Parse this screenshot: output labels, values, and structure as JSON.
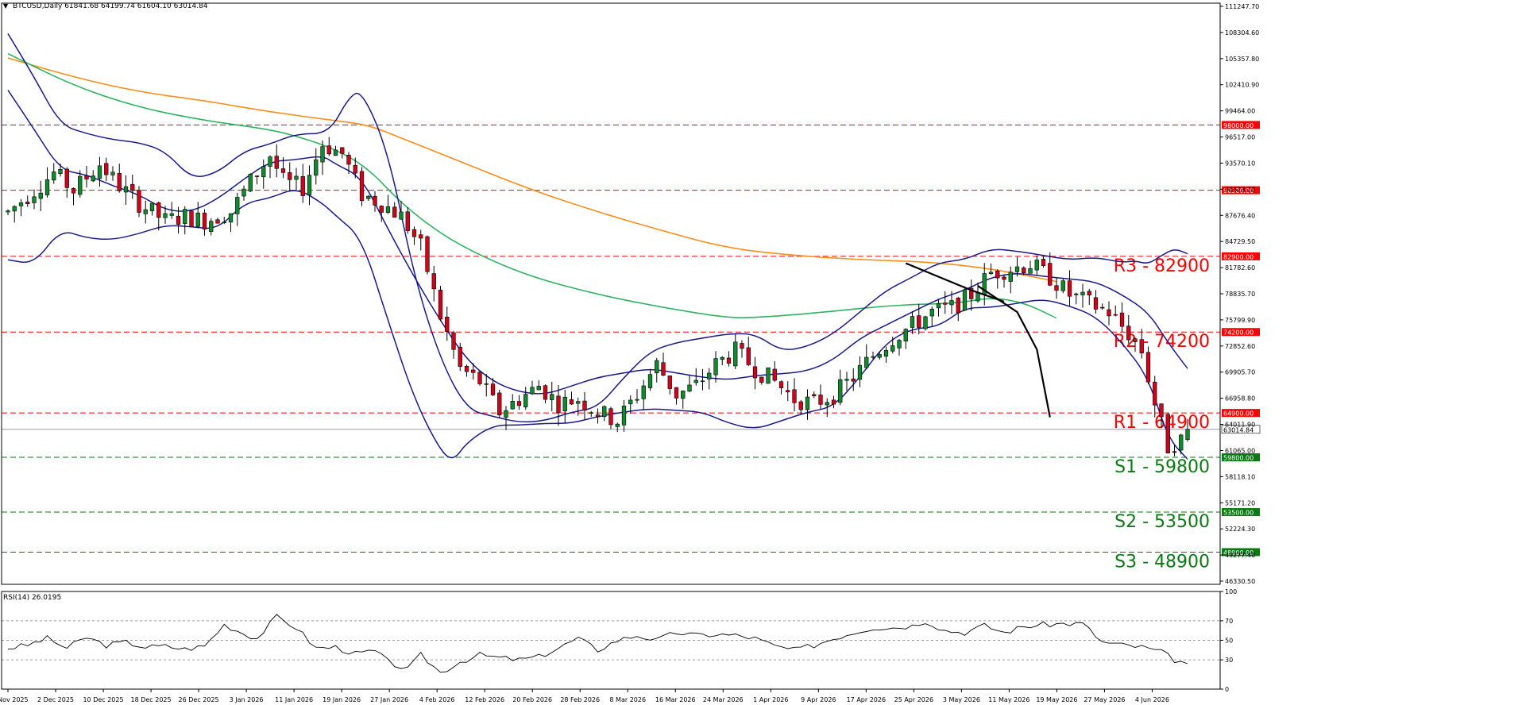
{
  "header": {
    "symbol": "BTCUSD,Daily",
    "ohlc": "61841.68 64199.74 61604.10 63014.84"
  },
  "rsi_header": "RSI(14) 26.0195",
  "colors": {
    "bull": "#0f8a2e",
    "bear": "#d0021b",
    "bb": "#1a1a8c",
    "ma100": "#2db360",
    "ma200": "#ff8c1a",
    "resistance": "#ff0000",
    "support": "#0a7a12",
    "trend": "#000000"
  },
  "chart_data": [
    {
      "type": "candlestick",
      "title": "BTCUSD,Daily",
      "ylim": [
        45200,
        112000
      ],
      "y_ticks": [
        "111247.70",
        "108304.60",
        "105357.80",
        "102410.90",
        "99464.00",
        "96517.00",
        "93570.10",
        "90623.20",
        "87676.40",
        "84729.50",
        "81782.60",
        "78835.70",
        "75799.90",
        "72852.60",
        "69905.70",
        "66958.80",
        "64011.90",
        "61065.00",
        "58118.10",
        "55171.20",
        "52224.30",
        "49277.40",
        "46330.50"
      ],
      "x_ticks": [
        "24 Nov 2025",
        "2 Dec 2025",
        "10 Dec 2025",
        "18 Dec 2025",
        "26 Dec 2025",
        "3 Jan 2026",
        "11 Jan 2026",
        "19 Jan 2026",
        "27 Jan 2026",
        "4 Feb 2026",
        "12 Feb 2026",
        "20 Feb 2026",
        "28 Feb 2026",
        "8 Mar 2026",
        "16 Mar 2026",
        "24 Mar 2026",
        "1 Apr 2026",
        "9 Apr 2026",
        "17 Apr 2026",
        "25 Apr 2026",
        "3 May 2026",
        "11 May 2026",
        "19 May 2026",
        "27 May 2026",
        "4 Jun 2026"
      ],
      "close_path": [
        [
          0,
          88000
        ],
        [
          4,
          90500
        ],
        [
          7,
          92500
        ],
        [
          10,
          90500
        ],
        [
          14,
          93500
        ],
        [
          17,
          91000
        ],
        [
          20,
          89000
        ],
        [
          24,
          87000
        ],
        [
          27,
          87500
        ],
        [
          30,
          87000
        ],
        [
          34,
          88000
        ],
        [
          37,
          91500
        ],
        [
          40,
          94500
        ],
        [
          42,
          91500
        ],
        [
          45,
          90800
        ],
        [
          48,
          95800
        ],
        [
          51,
          94700
        ],
        [
          54,
          90000
        ],
        [
          57,
          89000
        ],
        [
          60,
          87500
        ],
        [
          63,
          84000
        ],
        [
          66,
          76000
        ],
        [
          69,
          70000
        ],
        [
          72,
          68500
        ],
        [
          75,
          65000
        ],
        [
          78,
          66500
        ],
        [
          81,
          68000
        ],
        [
          84,
          66000
        ],
        [
          87,
          66500
        ],
        [
          90,
          65000
        ],
        [
          93,
          64000
        ],
        [
          96,
          67000
        ],
        [
          99,
          70500
        ],
        [
          102,
          67000
        ],
        [
          105,
          68000
        ],
        [
          108,
          70500
        ],
        [
          111,
          72000
        ],
        [
          114,
          70000
        ],
        [
          117,
          68500
        ],
        [
          120,
          66500
        ],
        [
          123,
          66000
        ],
        [
          126,
          67000
        ],
        [
          129,
          69000
        ],
        [
          132,
          71500
        ],
        [
          135,
          73500
        ],
        [
          138,
          75000
        ],
        [
          141,
          76500
        ],
        [
          144,
          77000
        ],
        [
          147,
          78500
        ],
        [
          150,
          81000
        ],
        [
          153,
          81500
        ],
        [
          156,
          82000
        ],
        [
          159,
          80500
        ],
        [
          162,
          78500
        ],
        [
          165,
          77500
        ],
        [
          168,
          76500
        ],
        [
          171,
          74000
        ],
        [
          173,
          72000
        ],
        [
          175,
          66000
        ],
        [
          177,
          61000
        ],
        [
          179,
          61800
        ],
        [
          180,
          63014.84
        ]
      ],
      "last": [
        61841.68,
        64199.74,
        61604.1,
        63014.84
      ],
      "last_price_label": "63014.84",
      "bollinger_upper": [
        [
          0,
          108500
        ],
        [
          4,
          103500
        ],
        [
          8,
          98000
        ],
        [
          12,
          97000
        ],
        [
          16,
          96300
        ],
        [
          20,
          96000
        ],
        [
          24,
          95000
        ],
        [
          28,
          91800
        ],
        [
          32,
          92500
        ],
        [
          36,
          95000
        ],
        [
          40,
          95800
        ],
        [
          44,
          97000
        ],
        [
          49,
          97000
        ],
        [
          52,
          101200
        ],
        [
          54,
          102000
        ],
        [
          58,
          95000
        ],
        [
          62,
          80500
        ],
        [
          66,
          71000
        ],
        [
          70,
          65300
        ],
        [
          74,
          64500
        ],
        [
          78,
          63800
        ],
        [
          82,
          64000
        ],
        [
          86,
          65000
        ],
        [
          90,
          65500
        ],
        [
          94,
          69000
        ],
        [
          98,
          72000
        ],
        [
          102,
          73000
        ],
        [
          106,
          73500
        ],
        [
          110,
          74000
        ],
        [
          114,
          74000
        ],
        [
          118,
          72000
        ],
        [
          122,
          72500
        ],
        [
          126,
          74000
        ],
        [
          130,
          76500
        ],
        [
          134,
          79000
        ],
        [
          138,
          80500
        ],
        [
          142,
          82200
        ],
        [
          146,
          82500
        ],
        [
          150,
          83800
        ],
        [
          154,
          83500
        ],
        [
          158,
          83000
        ],
        [
          162,
          82500
        ],
        [
          166,
          82800
        ],
        [
          170,
          82200
        ],
        [
          172,
          82400
        ],
        [
          174,
          82000
        ],
        [
          176,
          83000
        ],
        [
          178,
          83800
        ],
        [
          180,
          83200
        ]
      ],
      "bollinger_middle": [
        [
          0,
          102000
        ],
        [
          4,
          97500
        ],
        [
          8,
          92800
        ],
        [
          12,
          92300
        ],
        [
          16,
          91000
        ],
        [
          20,
          90000
        ],
        [
          24,
          88200
        ],
        [
          28,
          88000
        ],
        [
          32,
          89500
        ],
        [
          36,
          91800
        ],
        [
          40,
          93800
        ],
        [
          44,
          94000
        ],
        [
          48,
          94500
        ],
        [
          50,
          93500
        ],
        [
          54,
          92000
        ],
        [
          58,
          86000
        ],
        [
          62,
          80500
        ],
        [
          66,
          75500
        ],
        [
          70,
          71000
        ],
        [
          74,
          68500
        ],
        [
          78,
          67300
        ],
        [
          82,
          67000
        ],
        [
          86,
          68000
        ],
        [
          90,
          69000
        ],
        [
          94,
          69500
        ],
        [
          98,
          70000
        ],
        [
          102,
          69500
        ],
        [
          106,
          69000
        ],
        [
          110,
          68700
        ],
        [
          114,
          69200
        ],
        [
          118,
          69400
        ],
        [
          122,
          69700
        ],
        [
          126,
          71000
        ],
        [
          130,
          73500
        ],
        [
          134,
          75000
        ],
        [
          138,
          76500
        ],
        [
          142,
          78000
        ],
        [
          146,
          79000
        ],
        [
          150,
          80500
        ],
        [
          154,
          81000
        ],
        [
          158,
          80600
        ],
        [
          162,
          80300
        ],
        [
          166,
          80000
        ],
        [
          170,
          78500
        ],
        [
          174,
          76500
        ],
        [
          177,
          73000
        ],
        [
          180,
          70000
        ]
      ],
      "bollinger_lower": [
        [
          0,
          82500
        ],
        [
          4,
          82000
        ],
        [
          8,
          86000
        ],
        [
          12,
          85000
        ],
        [
          16,
          84800
        ],
        [
          20,
          85500
        ],
        [
          24,
          86500
        ],
        [
          28,
          86300
        ],
        [
          32,
          86000
        ],
        [
          36,
          89000
        ],
        [
          40,
          89600
        ],
        [
          44,
          90800
        ],
        [
          48,
          89000
        ],
        [
          50,
          87600
        ],
        [
          54,
          85000
        ],
        [
          58,
          75500
        ],
        [
          62,
          66500
        ],
        [
          66,
          60500
        ],
        [
          68,
          59400
        ],
        [
          70,
          61500
        ],
        [
          74,
          63500
        ],
        [
          78,
          63500
        ],
        [
          82,
          63700
        ],
        [
          86,
          63700
        ],
        [
          90,
          64500
        ],
        [
          94,
          65000
        ],
        [
          98,
          65400
        ],
        [
          102,
          65200
        ],
        [
          106,
          65000
        ],
        [
          110,
          63700
        ],
        [
          114,
          63000
        ],
        [
          118,
          64000
        ],
        [
          122,
          65000
        ],
        [
          126,
          65600
        ],
        [
          130,
          69000
        ],
        [
          134,
          73000
        ],
        [
          138,
          74600
        ],
        [
          142,
          74800
        ],
        [
          146,
          77000
        ],
        [
          150,
          77000
        ],
        [
          154,
          77500
        ],
        [
          158,
          78000
        ],
        [
          162,
          77200
        ],
        [
          166,
          76000
        ],
        [
          170,
          73000
        ],
        [
          174,
          69000
        ],
        [
          177,
          62000
        ],
        [
          180,
          59600
        ]
      ],
      "ma100": [
        [
          0,
          106200
        ],
        [
          10,
          102500
        ],
        [
          20,
          100000
        ],
        [
          30,
          98500
        ],
        [
          40,
          97500
        ],
        [
          45,
          96500
        ],
        [
          50,
          95200
        ],
        [
          55,
          93000
        ],
        [
          60,
          89000
        ],
        [
          66,
          85500
        ],
        [
          72,
          83000
        ],
        [
          80,
          80500
        ],
        [
          90,
          78500
        ],
        [
          100,
          77000
        ],
        [
          110,
          75800
        ],
        [
          115,
          75900
        ],
        [
          125,
          76500
        ],
        [
          135,
          77300
        ],
        [
          145,
          77500
        ],
        [
          150,
          78200
        ],
        [
          155,
          77600
        ],
        [
          160,
          75800
        ]
      ],
      "ma200": [
        [
          0,
          105700
        ],
        [
          10,
          103500
        ],
        [
          20,
          101800
        ],
        [
          30,
          100800
        ],
        [
          40,
          99500
        ],
        [
          50,
          98500
        ],
        [
          55,
          98000
        ],
        [
          60,
          96500
        ],
        [
          70,
          93500
        ],
        [
          80,
          90500
        ],
        [
          90,
          88000
        ],
        [
          100,
          85800
        ],
        [
          110,
          83800
        ],
        [
          120,
          83000
        ],
        [
          130,
          82500
        ],
        [
          140,
          82300
        ],
        [
          150,
          81500
        ],
        [
          160,
          80000
        ]
      ],
      "levels": [
        {
          "label": "R3 - 82900",
          "value": 82900,
          "tag": "82900.00",
          "role": "resistance"
        },
        {
          "label": "R2 - 74200",
          "value": 74200,
          "tag": "74200.00",
          "role": "resistance"
        },
        {
          "label": "R1 - 64900",
          "value": 64900,
          "tag": "64900.00",
          "role": "resistance"
        },
        {
          "label": "S1 - 59800",
          "value": 59800,
          "tag": "59800.00",
          "role": "support"
        },
        {
          "label": "S2 - 53500",
          "value": 53500,
          "tag": "53500.00",
          "role": "support"
        },
        {
          "label": "S3 - 48900",
          "value": 48900,
          "tag": "48900.00",
          "role": "support"
        },
        {
          "label": "",
          "value": 98000,
          "tag": "98000.00",
          "role": "resistance"
        },
        {
          "label": "",
          "value": 90500,
          "tag": "90500.00",
          "role": "resistance"
        }
      ],
      "trendlines": [
        [
          [
            137,
            82100
          ],
          [
            147,
            79000
          ],
          [
            152,
            77700
          ]
        ],
        [
          [
            148,
            79500
          ],
          [
            154,
            76500
          ],
          [
            157,
            72200
          ],
          [
            159,
            64400
          ]
        ]
      ]
    },
    {
      "type": "line",
      "title": "RSI(14) 26.0195",
      "ylim": [
        0,
        100
      ],
      "y_ticks": [
        100,
        70,
        50,
        30,
        0
      ],
      "levels": [
        70,
        50,
        30
      ],
      "values": [
        [
          0,
          42
        ],
        [
          3,
          45
        ],
        [
          6,
          52
        ],
        [
          9,
          42
        ],
        [
          12,
          53
        ],
        [
          15,
          45
        ],
        [
          18,
          48
        ],
        [
          21,
          43
        ],
        [
          24,
          44
        ],
        [
          27,
          41
        ],
        [
          30,
          44
        ],
        [
          33,
          66
        ],
        [
          36,
          57
        ],
        [
          38,
          52
        ],
        [
          41,
          74
        ],
        [
          44,
          63
        ],
        [
          47,
          42
        ],
        [
          50,
          43
        ],
        [
          53,
          36
        ],
        [
          56,
          39
        ],
        [
          58,
          28
        ],
        [
          61,
          20
        ],
        [
          63,
          35
        ],
        [
          66,
          17
        ],
        [
          69,
          28
        ],
        [
          72,
          35
        ],
        [
          75,
          32
        ],
        [
          78,
          30
        ],
        [
          81,
          33
        ],
        [
          84,
          42
        ],
        [
          87,
          52
        ],
        [
          90,
          40
        ],
        [
          93,
          50
        ],
        [
          96,
          55
        ],
        [
          99,
          50
        ],
        [
          102,
          58
        ],
        [
          105,
          55
        ],
        [
          108,
          56
        ],
        [
          111,
          55
        ],
        [
          114,
          52
        ],
        [
          117,
          44
        ],
        [
          120,
          40
        ],
        [
          123,
          45
        ],
        [
          126,
          52
        ],
        [
          129,
          58
        ],
        [
          132,
          63
        ],
        [
          135,
          63
        ],
        [
          138,
          65
        ],
        [
          140,
          70
        ],
        [
          143,
          60
        ],
        [
          146,
          58
        ],
        [
          149,
          65
        ],
        [
          152,
          58
        ],
        [
          155,
          64
        ],
        [
          158,
          66
        ],
        [
          161,
          67
        ],
        [
          164,
          67
        ],
        [
          167,
          48
        ],
        [
          170,
          45
        ],
        [
          173,
          43
        ],
        [
          176,
          38
        ],
        [
          178,
          30
        ],
        [
          180,
          26
        ]
      ]
    }
  ]
}
